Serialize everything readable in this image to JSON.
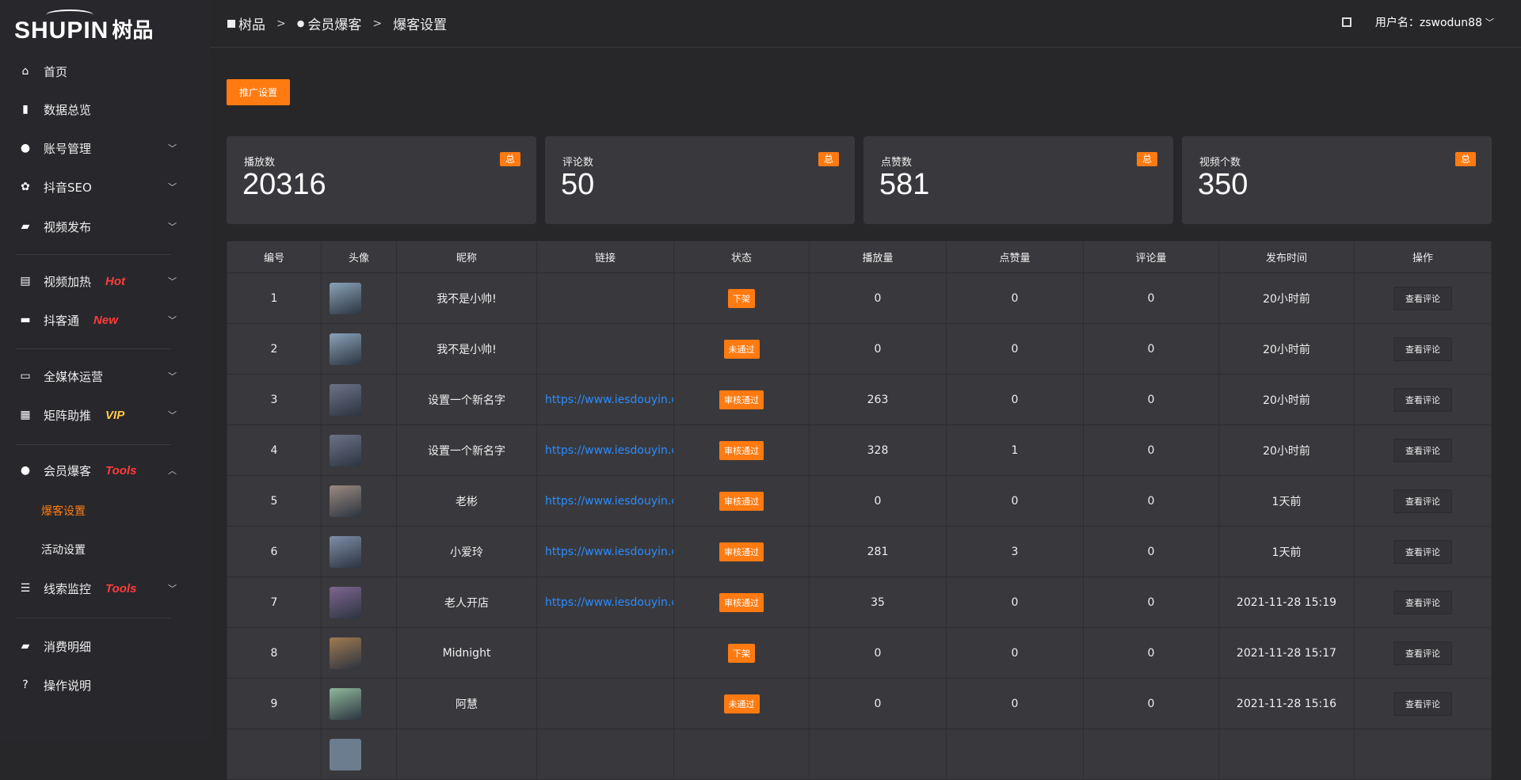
{
  "logo": {
    "en": "SHUPIN",
    "cn": "树品"
  },
  "sidebar": {
    "items": [
      {
        "label": "首页",
        "icon": "home-icon",
        "glyph": "⌂"
      },
      {
        "label": "数据总览",
        "icon": "bar-chart-icon",
        "glyph": "▮"
      },
      {
        "label": "账号管理",
        "icon": "user-icon",
        "glyph": "●",
        "chevron": true
      },
      {
        "label": "抖音SEO",
        "icon": "gear-icon",
        "glyph": "✿",
        "chevron": true
      },
      {
        "label": "视频发布",
        "icon": "camera-icon",
        "glyph": "▰",
        "chevron": true
      },
      {
        "label": "视频加热",
        "icon": "sign-icon",
        "glyph": "▤",
        "chevron": true,
        "tag": "Hot",
        "tag_color": "#ff3b3b"
      },
      {
        "label": "抖客通",
        "icon": "comment-icon",
        "glyph": "▬",
        "chevron": true,
        "tag": "New",
        "tag_color": "#ff3b3b"
      },
      {
        "label": "全媒体运营",
        "icon": "monitor-icon",
        "glyph": "▭",
        "chevron": true
      },
      {
        "label": "矩阵助推",
        "icon": "grid-icon",
        "glyph": "▦",
        "chevron": true,
        "tag": "VIP",
        "tag_color": "#ffc94a"
      },
      {
        "label": "会员爆客",
        "icon": "user-icon",
        "glyph": "●",
        "chevron": true,
        "expanded": true,
        "tag": "Tools",
        "tag_color": "#ff3b3b"
      },
      {
        "label": "线索监控",
        "icon": "sliders-icon",
        "glyph": "☰",
        "chevron": true,
        "tag": "Tools",
        "tag_color": "#ff3b3b"
      },
      {
        "label": "消费明细",
        "icon": "wallet-icon",
        "glyph": "▰"
      },
      {
        "label": "操作说明",
        "icon": "question-icon",
        "glyph": "?"
      }
    ],
    "subitems": [
      {
        "label": "爆客设置",
        "active": true
      },
      {
        "label": "活动设置"
      }
    ]
  },
  "breadcrumb": [
    "树品",
    "会员爆客",
    "爆客设置"
  ],
  "header": {
    "username": "用户名：zswodun88"
  },
  "promo_button": "推广设置",
  "stats": [
    {
      "label": "播放数",
      "value": "20316",
      "badge": "总"
    },
    {
      "label": "评论数",
      "value": "50",
      "badge": "总"
    },
    {
      "label": "点赞数",
      "value": "581",
      "badge": "总"
    },
    {
      "label": "视频个数",
      "value": "350",
      "badge": "总"
    }
  ],
  "table": {
    "columns": [
      "编号",
      "头像",
      "昵称",
      "链接",
      "状态",
      "播放量",
      "点赞量",
      "评论量",
      "发布时间",
      "操作"
    ],
    "action_label": "查看评论",
    "rows": [
      {
        "id": "1",
        "avatar": "#8aa3b8",
        "name": "我不是小帅!",
        "link": "",
        "status": "下架",
        "plays": "0",
        "likes": "0",
        "comments": "0",
        "time": "20小时前"
      },
      {
        "id": "2",
        "avatar": "#8aa3b8",
        "name": "我不是小帅!",
        "link": "",
        "status": "未通过",
        "plays": "0",
        "likes": "0",
        "comments": "0",
        "time": "20小时前"
      },
      {
        "id": "3",
        "avatar": "#6c7388",
        "name": "设置一个新名字",
        "link": "https://www.iesdouyin.com",
        "status": "审核通过",
        "plays": "263",
        "likes": "0",
        "comments": "0",
        "time": "20小时前"
      },
      {
        "id": "4",
        "avatar": "#6c7388",
        "name": "设置一个新名字",
        "link": "https://www.iesdouyin.com",
        "status": "审核通过",
        "plays": "328",
        "likes": "1",
        "comments": "0",
        "time": "20小时前"
      },
      {
        "id": "5",
        "avatar": "#9a8a80",
        "name": "老彬",
        "link": "https://www.iesdouyin.com",
        "status": "审核通过",
        "plays": "0",
        "likes": "0",
        "comments": "0",
        "time": "1天前"
      },
      {
        "id": "6",
        "avatar": "#7f8ea8",
        "name": "小爱玲",
        "link": "https://www.iesdouyin.com",
        "status": "审核通过",
        "plays": "281",
        "likes": "3",
        "comments": "0",
        "time": "1天前"
      },
      {
        "id": "7",
        "avatar": "#7e6690",
        "name": "老人开店",
        "link": "https://www.iesdouyin.com",
        "status": "审核通过",
        "plays": "35",
        "likes": "0",
        "comments": "0",
        "time": "2021-11-28 15:19"
      },
      {
        "id": "8",
        "avatar": "#a07a50",
        "name": "Midnight",
        "link": "",
        "status": "下架",
        "plays": "0",
        "likes": "0",
        "comments": "0",
        "time": "2021-11-28 15:17"
      },
      {
        "id": "9",
        "avatar": "#8fb89a",
        "name": "阿慧",
        "link": "",
        "status": "未通过",
        "plays": "0",
        "likes": "0",
        "comments": "0",
        "time": "2021-11-28 15:16"
      }
    ]
  },
  "colors": {
    "accent": "#ff7a10",
    "link": "#2a8cff",
    "bg": "#27272a",
    "card": "#39393d"
  }
}
